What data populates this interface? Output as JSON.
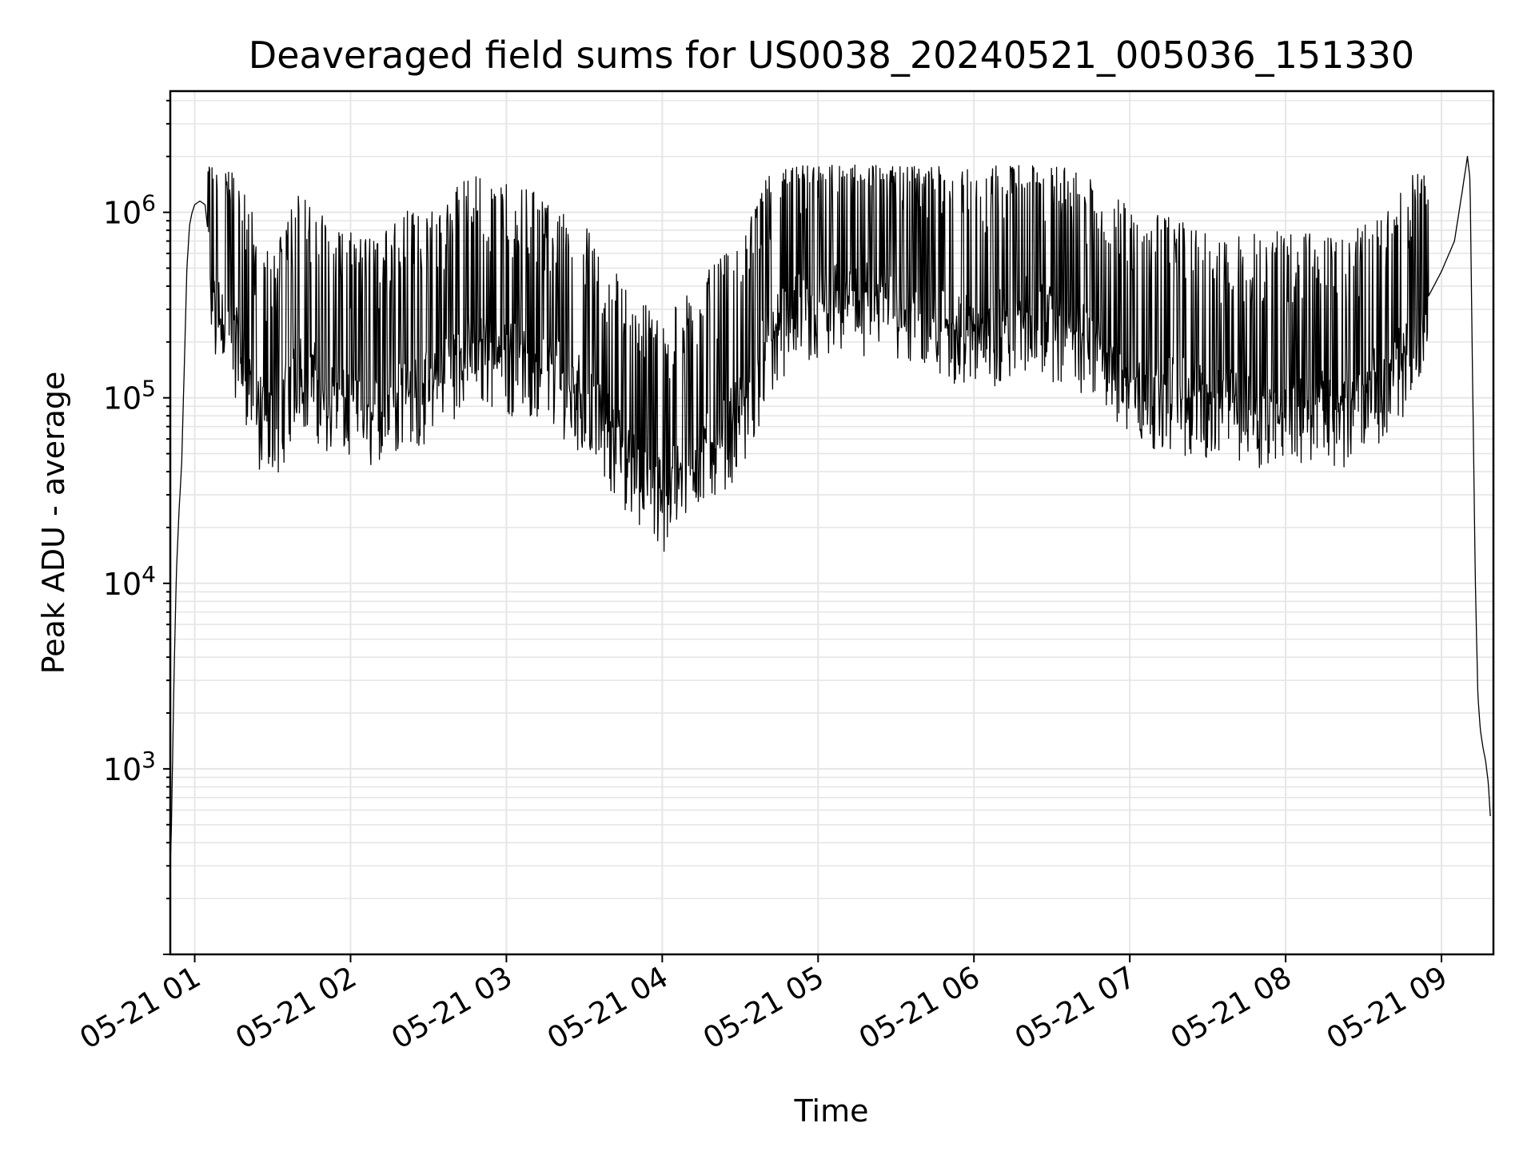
{
  "chart_data": {
    "type": "line",
    "title": "Deaveraged field sums for US0038_20240521_005036_151330",
    "xlabel": "Time",
    "ylabel": "Peak ADU - average",
    "x_scale": "time",
    "y_scale": "log",
    "xlim": [
      "2024-05-21 00:50:36",
      "2024-05-21 09:20:00"
    ],
    "ylim": [
      100,
      4500000
    ],
    "x_ticks": [
      "05-21 01",
      "05-21 02",
      "05-21 03",
      "05-21 04",
      "05-21 05",
      "05-21 06",
      "05-21 07",
      "05-21 08",
      "05-21 09"
    ],
    "y_ticks": [
      {
        "value": 1000,
        "base": "10",
        "exp": "3"
      },
      {
        "value": 10000,
        "base": "10",
        "exp": "4"
      },
      {
        "value": 100000,
        "base": "10",
        "exp": "5"
      },
      {
        "value": 1000000,
        "base": "10",
        "exp": "6"
      }
    ],
    "grid": true,
    "grid_minor": true,
    "line_color": "#000000",
    "grid_color": "#e6e6e6",
    "series": [
      {
        "x": [
          "00:50:36",
          "00:51:00",
          "00:52:00",
          "00:53:00",
          "00:54:00",
          "00:55:00",
          "00:56:00",
          "00:57:00",
          "00:58:00",
          "00:59:00",
          "01:00:00",
          "01:02:00",
          "01:04:00",
          "01:06:00",
          "01:08:00",
          "01:10:00",
          "01:15:00",
          "01:20:00",
          "01:25:00",
          "01:30:00",
          "01:40:00",
          "01:50:00",
          "02:00:00",
          "02:10:00",
          "02:20:00",
          "02:30:00",
          "02:40:00",
          "02:50:00",
          "03:00:00",
          "03:10:00",
          "03:20:00",
          "03:30:00",
          "03:40:00",
          "03:50:00",
          "04:00:00",
          "04:10:00",
          "04:20:00",
          "04:30:00",
          "04:40:00",
          "04:50:00",
          "05:00:00",
          "05:10:00",
          "05:20:00",
          "05:30:00",
          "05:40:00",
          "05:50:00",
          "06:00:00",
          "06:10:00",
          "06:20:00",
          "06:30:00",
          "06:40:00",
          "06:50:00",
          "07:00:00",
          "07:10:00",
          "07:20:00",
          "07:30:00",
          "07:40:00",
          "07:50:00",
          "08:00:00",
          "08:10:00",
          "08:20:00",
          "08:30:00",
          "08:40:00",
          "08:50:00",
          "09:00:00",
          "09:05:00",
          "09:08:00",
          "09:10:00",
          "09:11:00",
          "09:12:00",
          "09:13:00",
          "09:14:00",
          "09:15:00",
          "09:16:00",
          "09:17:00",
          "09:18:00",
          "09:19:00"
        ],
        "y": [
          300,
          450,
          3000,
          12000,
          25000,
          45000,
          150000,
          500000,
          850000,
          1000000,
          1100000,
          1150000,
          1100000,
          600000,
          400000,
          380000,
          300000,
          200000,
          110000,
          90000,
          200000,
          150000,
          120000,
          110000,
          160000,
          150000,
          220000,
          250000,
          230000,
          200000,
          180000,
          140000,
          90000,
          55000,
          40000,
          60000,
          80000,
          110000,
          250000,
          380000,
          420000,
          450000,
          460000,
          430000,
          380000,
          320000,
          300000,
          320000,
          380000,
          350000,
          280000,
          220000,
          170000,
          150000,
          140000,
          130000,
          125000,
          120000,
          125000,
          120000,
          115000,
          140000,
          180000,
          260000,
          480000,
          700000,
          1300000,
          2000000,
          1500000,
          120000,
          11000,
          2500,
          1600,
          1300,
          1100,
          850,
          500
        ]
      }
    ]
  }
}
